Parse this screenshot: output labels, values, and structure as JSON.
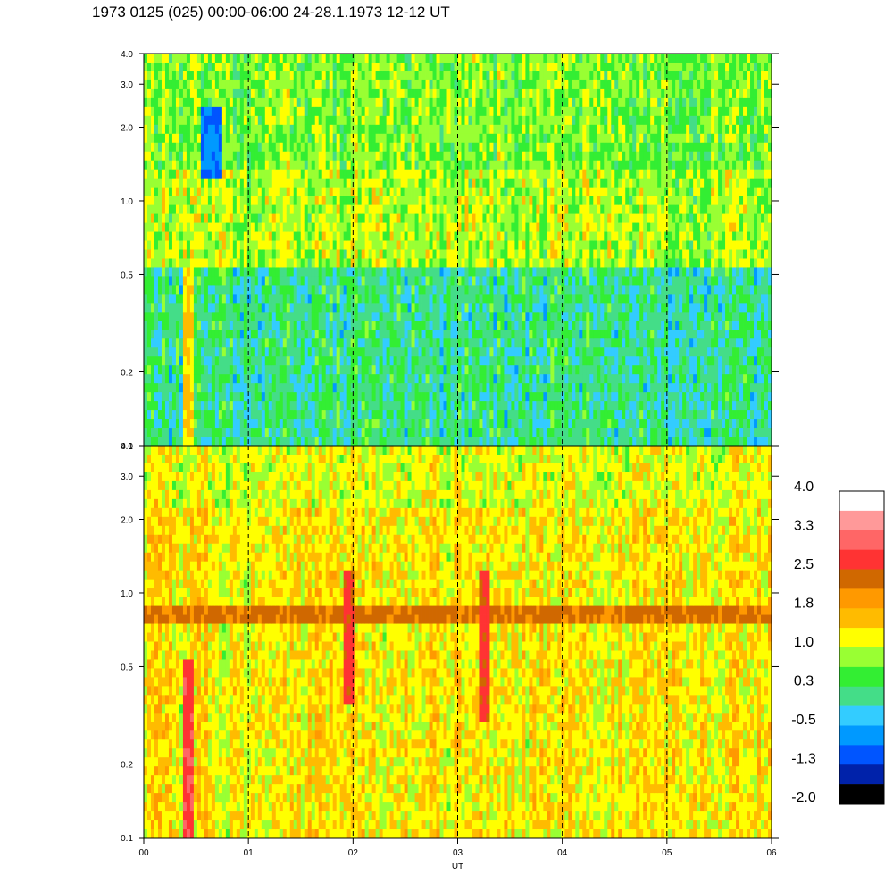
{
  "title": "1973 0125 (025) 00:00-06:00 24-28.1.1973  12-12 UT",
  "chart_data": [
    {
      "type": "heatmap",
      "panel": "upper",
      "x_range": [
        "00",
        "06"
      ],
      "y_scale": "log",
      "y_range": [
        0.1,
        4.0
      ],
      "y_ticks": [
        "0.1",
        "0.2",
        "0.5",
        "1.0",
        "2.0",
        "3.0",
        "4.0"
      ],
      "y_tick_values": [
        0.1,
        0.2,
        0.5,
        1.0,
        2.0,
        3.0,
        4.0
      ],
      "dashed_gridlines_x": [
        1,
        2,
        3,
        4,
        5
      ],
      "dominant_levels": "-0.5 to 1.0",
      "features": [
        {
          "x_hours": [
            0.38,
            0.48
          ],
          "y_range": [
            0.1,
            0.55
          ],
          "level": 1.4
        },
        {
          "x_hours": [
            0.55,
            0.75
          ],
          "y_range": [
            1.2,
            2.5
          ],
          "level": -0.9
        }
      ]
    },
    {
      "type": "heatmap",
      "panel": "lower",
      "x_range": [
        "00",
        "06"
      ],
      "y_scale": "log",
      "y_range": [
        0.1,
        4.0
      ],
      "y_ticks": [
        "0.1",
        "0.2",
        "0.5",
        "1.0",
        "2.0",
        "3.0",
        "4.0"
      ],
      "y_tick_values": [
        0.1,
        0.2,
        0.5,
        1.0,
        2.0,
        3.0,
        4.0
      ],
      "x_ticks": [
        "00",
        "01",
        "02",
        "03",
        "04",
        "05",
        "06"
      ],
      "x_tick_values": [
        0,
        1,
        2,
        3,
        4,
        5,
        6
      ],
      "xlabel": "UT",
      "dashed_gridlines_x": [
        1,
        2,
        3,
        4,
        5
      ],
      "dominant_levels": "1.0 to 1.8",
      "features": [
        {
          "x_hours": [
            0,
            6
          ],
          "y_range": [
            0.75,
            0.92
          ],
          "level": 2.2
        },
        {
          "x_hours": [
            0.38,
            0.48
          ],
          "y_range": [
            0.1,
            0.55
          ],
          "level": 2.8
        },
        {
          "x_hours": [
            1.92,
            2.0
          ],
          "y_range": [
            0.35,
            1.2
          ],
          "level": 2.6
        },
        {
          "x_hours": [
            3.2,
            3.3
          ],
          "y_range": [
            0.3,
            1.2
          ],
          "level": 2.6
        }
      ]
    }
  ],
  "colorbar": {
    "labels": [
      "4.0",
      "3.3",
      "2.5",
      "1.8",
      "1.0",
      "0.3",
      "-0.5",
      "-1.3",
      "-2.0"
    ],
    "colors": [
      "#ffffff",
      "#ff9999",
      "#ff6666",
      "#ff3333",
      "#d06800",
      "#ff9900",
      "#ffbb00",
      "#ffff00",
      "#99ff33",
      "#33ee33",
      "#44dd88",
      "#33ccff",
      "#0099ff",
      "#0055ff",
      "#0022aa",
      "#000000"
    ]
  }
}
